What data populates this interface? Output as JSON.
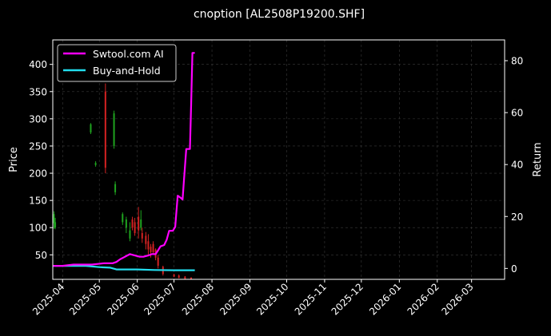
{
  "chart_data": {
    "type": "line",
    "title": "cnoption [AL2508P19200.SHF]",
    "ylabel": "Price",
    "y2label": "Return",
    "grid": true,
    "legend_placement": "top-left",
    "colors": {
      "background": "#000000",
      "grid": "#3a3a3a",
      "axis": "#ffffff",
      "strategy": "#ff00ff",
      "buyhold": "#22ddee",
      "candle_up": "#1fa31f",
      "candle_down": "#d42222"
    },
    "xlim": [
      "2025-03-24",
      "2026-03-28"
    ],
    "ylim": [
      5,
      445
    ],
    "y2lim": [
      -4.2,
      88
    ],
    "x_ticks": [
      "2025-04",
      "2025-05",
      "2025-06",
      "2025-07",
      "2025-08",
      "2025-09",
      "2025-10",
      "2025-11",
      "2025-12",
      "2026-01",
      "2026-02",
      "2026-03"
    ],
    "x_tick_dates": [
      "2025-04-01",
      "2025-05-01",
      "2025-06-01",
      "2025-07-01",
      "2025-08-01",
      "2025-09-01",
      "2025-10-01",
      "2025-11-01",
      "2025-12-01",
      "2026-01-01",
      "2026-02-01",
      "2026-03-01"
    ],
    "y_ticks": [
      50,
      100,
      150,
      200,
      250,
      300,
      350,
      400
    ],
    "y2_ticks": [
      0,
      20,
      40,
      60,
      80
    ],
    "series": [
      {
        "name": "Swtool.com AI",
        "axis": "right",
        "color": "#ff00ff",
        "points": [
          [
            "2025-03-24",
            1.0
          ],
          [
            "2025-04-01",
            1.0
          ],
          [
            "2025-04-10",
            1.5
          ],
          [
            "2025-04-25",
            1.5
          ],
          [
            "2025-05-05",
            2.0
          ],
          [
            "2025-05-12",
            2.0
          ],
          [
            "2025-05-15",
            2.5
          ],
          [
            "2025-05-18",
            3.5
          ],
          [
            "2025-05-22",
            4.5
          ],
          [
            "2025-05-26",
            5.5
          ],
          [
            "2025-05-30",
            5.0
          ],
          [
            "2025-06-03",
            4.5
          ],
          [
            "2025-06-06",
            4.5
          ],
          [
            "2025-06-10",
            5.0
          ],
          [
            "2025-06-13",
            5.5
          ],
          [
            "2025-06-16",
            5.5
          ],
          [
            "2025-06-18",
            7.0
          ],
          [
            "2025-06-20",
            8.5
          ],
          [
            "2025-06-23",
            9.0
          ],
          [
            "2025-06-25",
            11.0
          ],
          [
            "2025-06-27",
            14.5
          ],
          [
            "2025-06-30",
            14.5
          ],
          [
            "2025-07-02",
            16.0
          ],
          [
            "2025-07-04",
            28.0
          ],
          [
            "2025-07-07",
            27.0
          ],
          [
            "2025-07-08",
            26.5
          ],
          [
            "2025-07-09",
            33.0
          ],
          [
            "2025-07-11",
            46.0
          ],
          [
            "2025-07-14",
            46.0
          ],
          [
            "2025-07-15",
            63.0
          ],
          [
            "2025-07-16",
            83.0
          ],
          [
            "2025-07-18",
            83.0
          ]
        ]
      },
      {
        "name": "Buy-and-Hold",
        "axis": "right",
        "color": "#22ddee",
        "points": [
          [
            "2025-03-24",
            1.0
          ],
          [
            "2025-04-01",
            1.0
          ],
          [
            "2025-04-20",
            1.0
          ],
          [
            "2025-05-01",
            0.5
          ],
          [
            "2025-05-10",
            0.3
          ],
          [
            "2025-05-15",
            -0.4
          ],
          [
            "2025-06-01",
            -0.4
          ],
          [
            "2025-06-15",
            -0.6
          ],
          [
            "2025-07-01",
            -0.7
          ],
          [
            "2025-07-18",
            -0.7
          ]
        ]
      }
    ],
    "candles": [
      {
        "date": "2025-03-25",
        "open": 108,
        "close": 125,
        "low": 98,
        "high": 130
      },
      {
        "date": "2025-03-26",
        "open": 100,
        "close": 110,
        "low": 97,
        "high": 118
      },
      {
        "date": "2025-04-24",
        "open": 275,
        "close": 290,
        "low": 272,
        "high": 292
      },
      {
        "date": "2025-04-28",
        "open": 215,
        "close": 219,
        "low": 212,
        "high": 222
      },
      {
        "date": "2025-05-06",
        "open": 350,
        "close": 210,
        "low": 200,
        "high": 365
      },
      {
        "date": "2025-05-13",
        "open": 250,
        "close": 310,
        "low": 245,
        "high": 315
      },
      {
        "date": "2025-05-14",
        "open": 165,
        "close": 180,
        "low": 160,
        "high": 185
      },
      {
        "date": "2025-05-20",
        "open": 110,
        "close": 125,
        "low": 105,
        "high": 128
      },
      {
        "date": "2025-05-23",
        "open": 100,
        "close": 115,
        "low": 90,
        "high": 120
      },
      {
        "date": "2025-05-26",
        "open": 80,
        "close": 95,
        "low": 75,
        "high": 110
      },
      {
        "date": "2025-05-28",
        "open": 115,
        "close": 100,
        "low": 95,
        "high": 120
      },
      {
        "date": "2025-05-30",
        "open": 110,
        "close": 90,
        "low": 85,
        "high": 118
      },
      {
        "date": "2025-06-02",
        "open": 120,
        "close": 95,
        "low": 80,
        "high": 138
      },
      {
        "date": "2025-06-04",
        "open": 100,
        "close": 115,
        "low": 95,
        "high": 132
      },
      {
        "date": "2025-06-05",
        "open": 90,
        "close": 80,
        "low": 72,
        "high": 100
      },
      {
        "date": "2025-06-08",
        "open": 85,
        "close": 70,
        "low": 60,
        "high": 92
      },
      {
        "date": "2025-06-10",
        "open": 75,
        "close": 60,
        "low": 50,
        "high": 88
      },
      {
        "date": "2025-06-12",
        "open": 65,
        "close": 55,
        "low": 45,
        "high": 70
      },
      {
        "date": "2025-06-14",
        "open": 70,
        "close": 55,
        "low": 50,
        "high": 75
      },
      {
        "date": "2025-06-16",
        "open": 60,
        "close": 45,
        "low": 40,
        "high": 62
      },
      {
        "date": "2025-06-18",
        "open": 45,
        "close": 30,
        "low": 25,
        "high": 50
      },
      {
        "date": "2025-06-22",
        "open": 28,
        "close": 15,
        "low": 12,
        "high": 30
      },
      {
        "date": "2025-07-01",
        "open": 14,
        "close": 10,
        "low": 9,
        "high": 15
      },
      {
        "date": "2025-07-05",
        "open": 12,
        "close": 8,
        "low": 7,
        "high": 14
      },
      {
        "date": "2025-07-10",
        "open": 10,
        "close": 6,
        "low": 5,
        "high": 11
      },
      {
        "date": "2025-07-15",
        "open": 8,
        "close": 4,
        "low": 3,
        "high": 9
      }
    ]
  }
}
